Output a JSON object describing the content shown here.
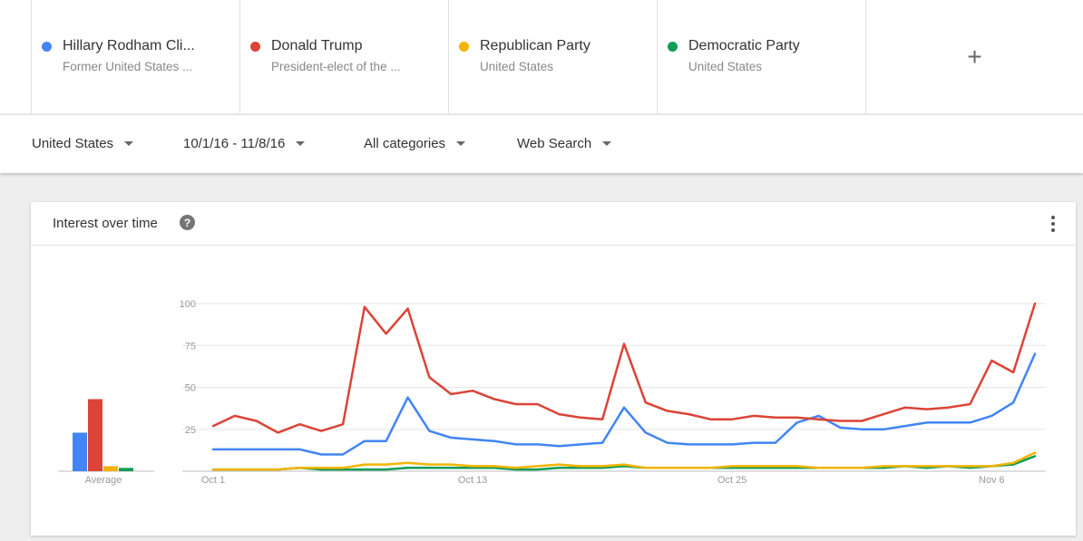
{
  "terms": [
    {
      "name": "Hillary Rodham Cli...",
      "subtitle": "Former United States ...",
      "color": "#4285f4"
    },
    {
      "name": "Donald Trump",
      "subtitle": "President-elect of the ...",
      "color": "#db4437"
    },
    {
      "name": "Republican Party",
      "subtitle": "United States",
      "color": "#f4b400"
    },
    {
      "name": "Democratic Party",
      "subtitle": "United States",
      "color": "#0f9d58"
    }
  ],
  "add_term_label": "+",
  "filters": {
    "region": "United States",
    "date_range": "10/1/16 - 11/8/16",
    "category": "All categories",
    "search_type": "Web Search"
  },
  "card": {
    "title": "Interest over time",
    "help_label": "?"
  },
  "chart_data": {
    "type": "line",
    "title": "Interest over time",
    "xlabel": "",
    "ylabel": "",
    "ylim": [
      0,
      100
    ],
    "yticks": [
      25,
      50,
      75,
      100
    ],
    "grid": true,
    "x_tick_labels": [
      {
        "index": 0,
        "label": "Oct 1"
      },
      {
        "index": 12,
        "label": "Oct 13"
      },
      {
        "index": 24,
        "label": "Oct 25"
      },
      {
        "index": 36,
        "label": "Nov 6"
      }
    ],
    "x": [
      "Oct 1",
      "Oct 2",
      "Oct 3",
      "Oct 4",
      "Oct 5",
      "Oct 6",
      "Oct 7",
      "Oct 8",
      "Oct 9",
      "Oct 10",
      "Oct 11",
      "Oct 12",
      "Oct 13",
      "Oct 14",
      "Oct 15",
      "Oct 16",
      "Oct 17",
      "Oct 18",
      "Oct 19",
      "Oct 20",
      "Oct 21",
      "Oct 22",
      "Oct 23",
      "Oct 24",
      "Oct 25",
      "Oct 26",
      "Oct 27",
      "Oct 28",
      "Oct 29",
      "Oct 30",
      "Oct 31",
      "Nov 1",
      "Nov 2",
      "Nov 3",
      "Nov 4",
      "Nov 5",
      "Nov 6",
      "Nov 7",
      "Nov 8"
    ],
    "series": [
      {
        "name": "Hillary Rodham Cli...",
        "color": "#4285f4",
        "values": [
          13,
          13,
          13,
          13,
          13,
          10,
          10,
          18,
          18,
          44,
          24,
          20,
          19,
          18,
          16,
          16,
          15,
          16,
          17,
          38,
          23,
          17,
          16,
          16,
          16,
          17,
          17,
          29,
          33,
          26,
          25,
          25,
          27,
          29,
          29,
          29,
          33,
          41,
          70
        ]
      },
      {
        "name": "Donald Trump",
        "color": "#db4437",
        "values": [
          27,
          33,
          30,
          23,
          28,
          24,
          28,
          98,
          82,
          97,
          56,
          46,
          48,
          43,
          40,
          40,
          34,
          32,
          31,
          76,
          41,
          36,
          34,
          31,
          31,
          33,
          32,
          32,
          31,
          30,
          30,
          34,
          38,
          37,
          38,
          40,
          66,
          59,
          100
        ]
      },
      {
        "name": "Republican Party",
        "color": "#f4b400",
        "values": [
          1,
          1,
          1,
          1,
          2,
          2,
          2,
          4,
          4,
          5,
          4,
          4,
          3,
          3,
          2,
          3,
          4,
          3,
          3,
          4,
          2,
          2,
          2,
          2,
          3,
          3,
          3,
          3,
          2,
          2,
          2,
          3,
          3,
          3,
          3,
          3,
          3,
          5,
          11
        ]
      },
      {
        "name": "Democratic Party",
        "color": "#0f9d58",
        "values": [
          1,
          1,
          1,
          1,
          2,
          1,
          1,
          1,
          1,
          2,
          2,
          2,
          2,
          2,
          1,
          1,
          2,
          2,
          2,
          3,
          2,
          2,
          2,
          2,
          2,
          2,
          2,
          2,
          2,
          2,
          2,
          2,
          3,
          2,
          3,
          2,
          3,
          4,
          9
        ]
      }
    ],
    "average": {
      "label": "Average",
      "values": [
        23,
        43,
        3,
        2
      ]
    }
  }
}
